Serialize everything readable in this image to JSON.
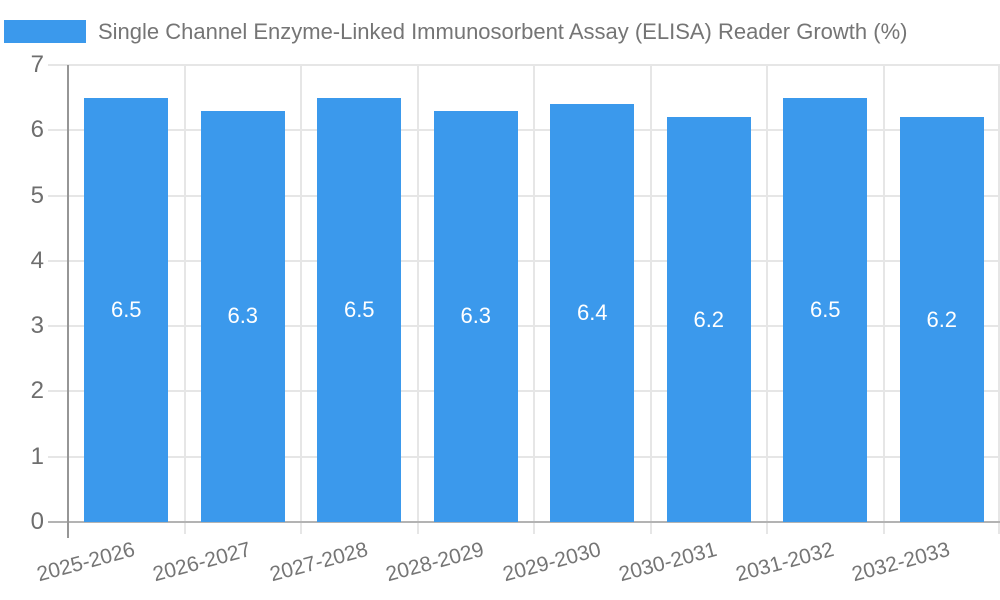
{
  "legend": {
    "label": "Single Channel Enzyme-Linked Immunosorbent Assay (ELISA) Reader Growth (%)",
    "swatch_color": "#3B99EC"
  },
  "chart_data": {
    "type": "bar",
    "title": "Single Channel Enzyme-Linked Immunosorbent Assay (ELISA) Reader Growth (%)",
    "categories": [
      "2025-2026",
      "2026-2027",
      "2027-2028",
      "2028-2029",
      "2029-2030",
      "2030-2031",
      "2031-2032",
      "2032-2033"
    ],
    "values": [
      6.5,
      6.3,
      6.5,
      6.3,
      6.4,
      6.2,
      6.5,
      6.2
    ],
    "xlabel": "",
    "ylabel": "",
    "ylim": [
      0,
      7
    ],
    "yticks": [
      0,
      1,
      2,
      3,
      4,
      5,
      6,
      7
    ],
    "grid": true,
    "legend_position": "top-left",
    "bar_color": "#3B99EC",
    "bar_label_color": "#FFFFFF",
    "value_decimals": 1
  },
  "colors": {
    "grid": "#E6E6E6",
    "y_axis": "#969696",
    "x_axis": "#B3B3B3",
    "y_tick_text": "#6E6E6E",
    "x_tick_text": "#757575",
    "title_text": "#757575",
    "background": "#FFFFFF"
  }
}
